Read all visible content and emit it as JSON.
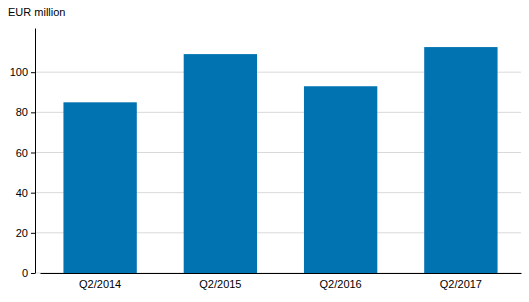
{
  "chart_data": {
    "type": "bar",
    "y_label": "EUR million",
    "categories": [
      "Q2/2014",
      "Q2/2015",
      "Q2/2016",
      "Q2/2017"
    ],
    "values": [
      85,
      109,
      93,
      112.5
    ],
    "color": "#0073b0",
    "ylim": [
      0,
      122
    ],
    "yticks": [
      0,
      20,
      40,
      60,
      80,
      100
    ],
    "grid": true
  }
}
